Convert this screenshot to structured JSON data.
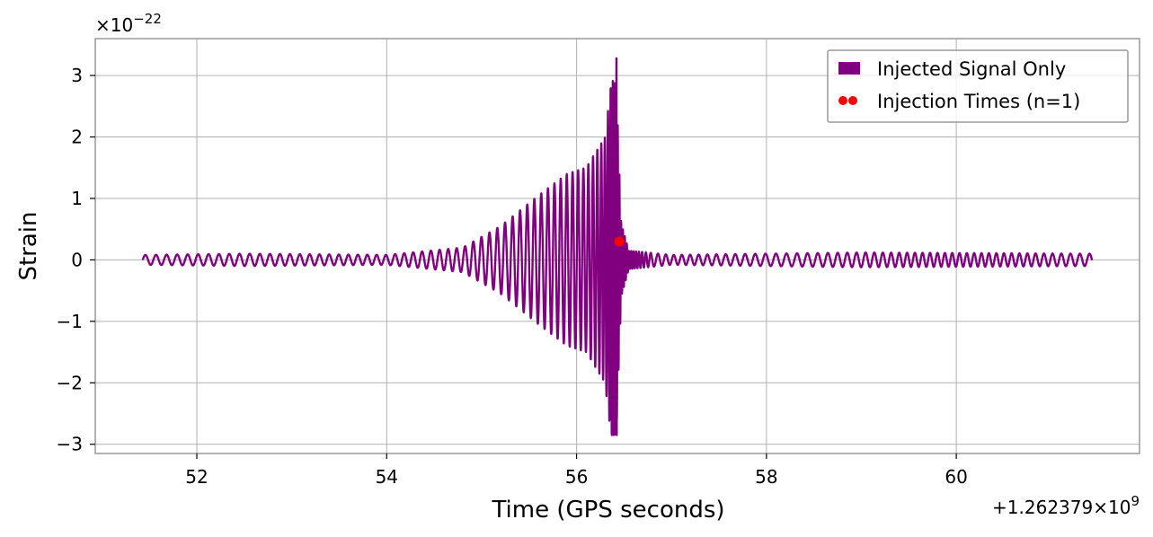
{
  "chart_data": {
    "type": "line",
    "xlabel": "Time (GPS seconds)",
    "ylabel": "Strain",
    "x_offset_text": "+1.262379×10",
    "x_offset_exponent": "9",
    "y_scale_text": "×10",
    "y_scale_exponent": "−22",
    "xlim": [
      50.93,
      61.93
    ],
    "ylim": [
      -3.15,
      3.6
    ],
    "x_ticks": [
      52,
      54,
      56,
      58,
      60
    ],
    "x_tick_labels": [
      "52",
      "54",
      "56",
      "58",
      "60"
    ],
    "y_ticks": [
      -3,
      -2,
      -1,
      0,
      1,
      2,
      3
    ],
    "y_tick_labels": [
      "−3",
      "−2",
      "−1",
      "0",
      "1",
      "2",
      "3"
    ],
    "grid": true,
    "legend_position": "top-right",
    "series": [
      {
        "name": "Injected Signal Only",
        "color": "#800080",
        "kind": "line",
        "x_range": [
          51.43,
          61.43
        ],
        "envelope": {
          "description_values": "peak amplitude vs time (units of 1e-22)",
          "times": [
            51.43,
            52.5,
            54.0,
            54.8,
            55.2,
            55.6,
            55.9,
            56.1,
            56.3,
            56.37,
            56.42,
            56.47,
            56.55,
            57.0,
            59.0,
            61.43
          ],
          "amplitudes": [
            0.08,
            0.1,
            0.08,
            0.2,
            0.55,
            1.05,
            1.4,
            1.5,
            2.0,
            3.0,
            2.8,
            0.6,
            0.15,
            0.08,
            0.12,
            0.1
          ]
        },
        "peak_max": 3.28,
        "peak_min": -2.85,
        "peak_time": 56.42
      },
      {
        "name": "Injection Times (n=1)",
        "color": "#ff0000",
        "kind": "scatter",
        "points": [
          {
            "x": 56.45,
            "y": 0.3
          }
        ]
      }
    ]
  }
}
